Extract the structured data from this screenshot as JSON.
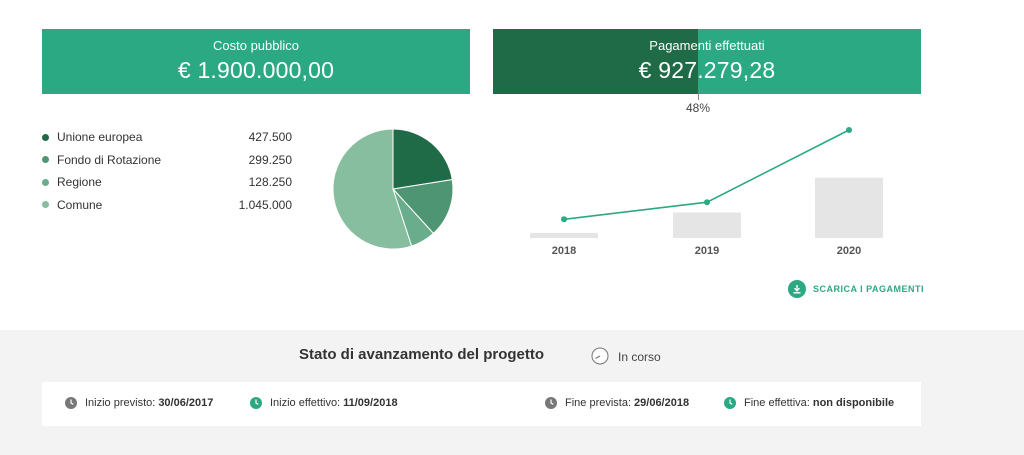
{
  "summary": {
    "costo_title": "Costo pubblico",
    "costo_value": "€ 1.900.000,00",
    "pagamenti_title": "Pagamenti effettuati",
    "pagamenti_value": "€ 927.279,28",
    "pagamenti_percent_label": "48%",
    "pagamenti_fraction": 0.48
  },
  "colors": {
    "accent": "#2aa983",
    "accent_dark": "#206b47",
    "bar_gray": "#e5e5e5"
  },
  "funding": {
    "items": [
      {
        "label": "Unione europea",
        "value": "427.500",
        "amount": 427500,
        "color": "#206b47"
      },
      {
        "label": "Fondo di Rotazione",
        "value": "299.250",
        "amount": 299250,
        "color": "#4e9673"
      },
      {
        "label": "Regione",
        "value": "128.250",
        "amount": 128250,
        "color": "#69ad8c"
      },
      {
        "label": "Comune",
        "value": "1.045.000",
        "amount": 1045000,
        "color": "#86be9f"
      }
    ]
  },
  "chart_data": [
    {
      "type": "pie",
      "labels": [
        "Unione europea",
        "Fondo di Rotazione",
        "Regione",
        "Comune"
      ],
      "values": [
        427500,
        299250,
        128250,
        1045000
      ]
    },
    {
      "type": "bar",
      "categories": [
        "2018",
        "2019",
        "2020"
      ],
      "series": [
        {
          "values": [
            0.06,
            0.3,
            0.71
          ]
        },
        {
          "values": [
            0.06,
            0.24,
            1.0
          ]
        }
      ]
    }
  ],
  "download": {
    "label": "SCARICA I PAGAMENTI",
    "icon": "download-icon"
  },
  "status": {
    "title": "Stato di avanzamento del progetto",
    "value": "In corso",
    "icon": "clock-icon"
  },
  "dates": {
    "inizio_previsto_label": "Inizio previsto:",
    "inizio_previsto_value": "30/06/2017",
    "inizio_effettivo_label": "Inizio effettivo:",
    "inizio_effettivo_value": "11/09/2018",
    "fine_prevista_label": "Fine prevista:",
    "fine_prevista_value": "29/06/2018",
    "fine_effettiva_label": "Fine effettiva:",
    "fine_effettiva_value": "non disponibile"
  }
}
